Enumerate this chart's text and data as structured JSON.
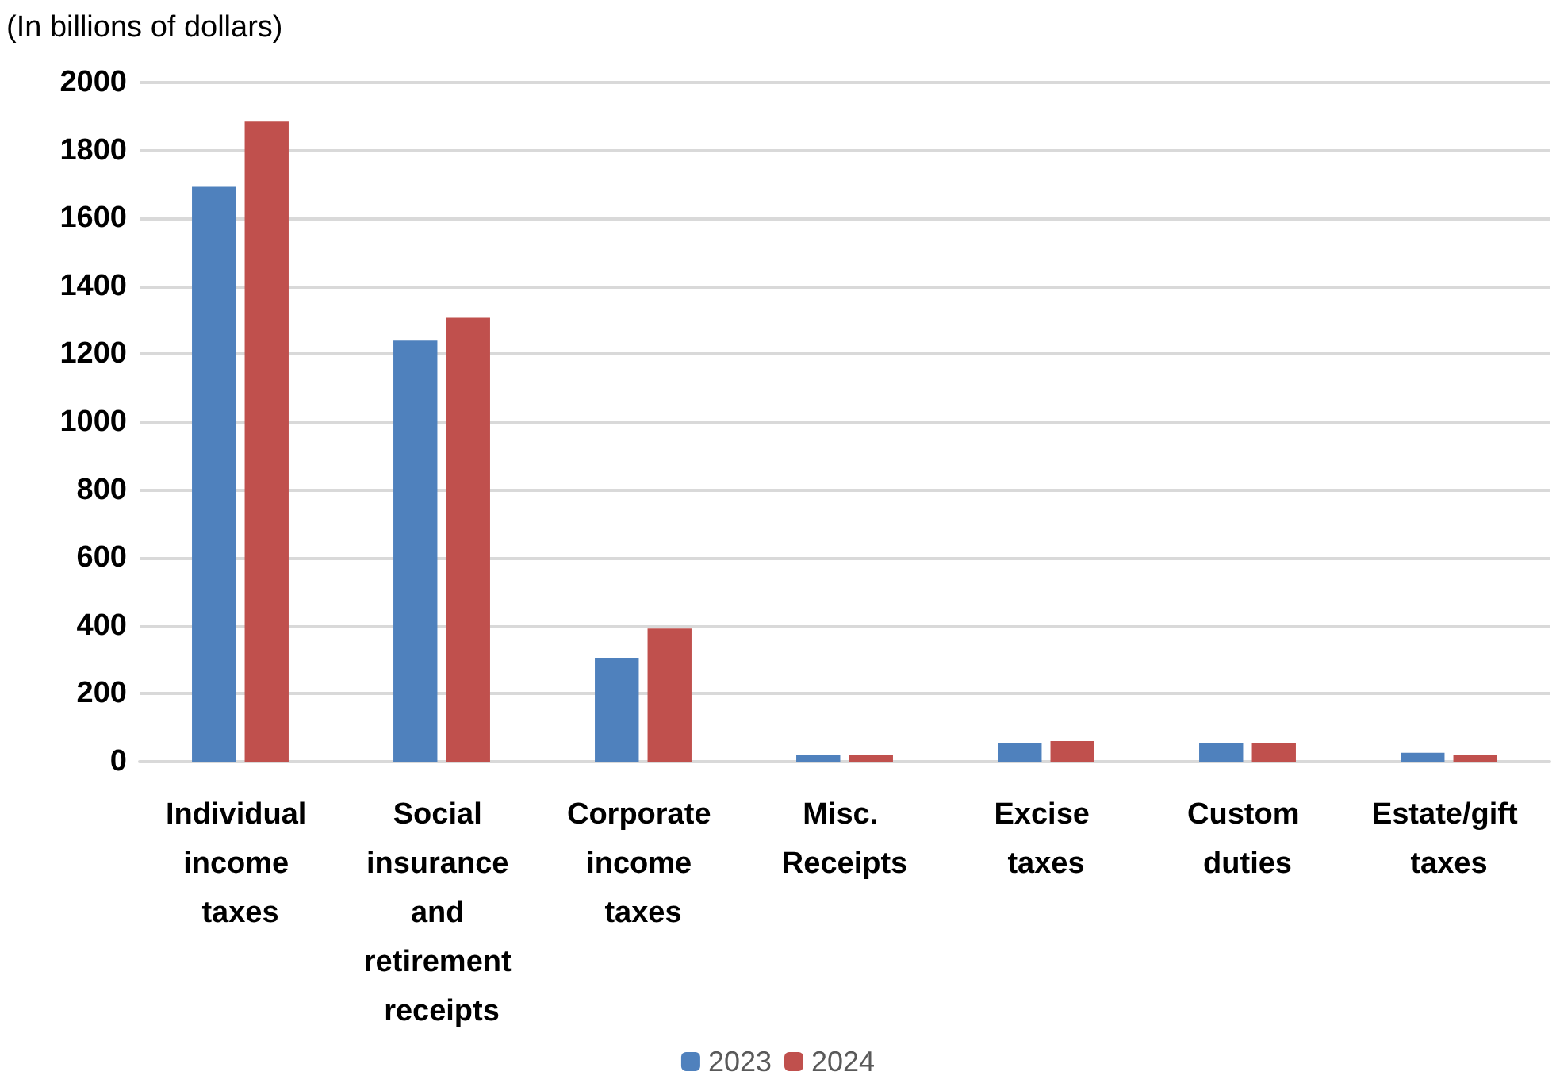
{
  "chart_data": {
    "type": "bar",
    "ylabel": "(In billions of dollars)",
    "categories": [
      "Individual income taxes",
      "Social insurance and retirement receipts",
      "Corporate income taxes",
      "Misc. Receipts",
      "Excise taxes",
      "Custom duties",
      "Estate/gift taxes"
    ],
    "series": [
      {
        "name": "2023",
        "color": "#4f81bd",
        "values": [
          1693,
          1240,
          306,
          20,
          54,
          54,
          26
        ]
      },
      {
        "name": "2024",
        "color": "#c0504d",
        "values": [
          1885,
          1307,
          392,
          20,
          61,
          54,
          20
        ]
      }
    ],
    "ylim": [
      0,
      2000
    ],
    "yticks": [
      0,
      200,
      400,
      600,
      800,
      1000,
      1200,
      1400,
      1600,
      1800,
      2000
    ],
    "grid": "y",
    "legend": "bottom"
  }
}
